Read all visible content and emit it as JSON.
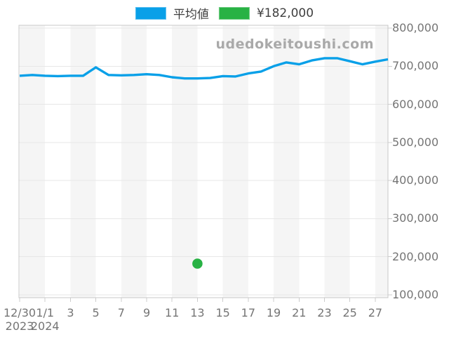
{
  "watermark": "udedokeitoushi.com",
  "legend": {
    "items": [
      {
        "label": "平均値",
        "color": "#09a0e8"
      },
      {
        "label": "¥182,000",
        "color": "#28b244"
      }
    ]
  },
  "colors": {
    "line": "#09a0e8",
    "dot": "#28b244",
    "band": "#f5f5f5",
    "grid": "#e7e7e7",
    "border": "#c8c8c8",
    "tick": "#cccccc"
  },
  "chart_data": {
    "type": "line",
    "title": "",
    "xlabel": "",
    "ylabel": "",
    "grid": true,
    "legend_position": "top",
    "background": "alternating-vertical-bands",
    "ylim": [
      100000,
      800000
    ],
    "x": [
      "12/30",
      "12/31",
      "1/1",
      "1/2",
      "1/3",
      "1/4",
      "1/5",
      "1/6",
      "1/7",
      "1/8",
      "1/9",
      "1/10",
      "1/11",
      "1/12",
      "1/13",
      "1/14",
      "1/15",
      "1/16",
      "1/17",
      "1/18",
      "1/19",
      "1/20",
      "1/21",
      "1/22",
      "1/23",
      "1/24",
      "1/25",
      "1/26",
      "1/27",
      "1/28"
    ],
    "x_ticks": [
      {
        "label": "12/30",
        "sub": "2023"
      },
      {
        "label": "1/1",
        "sub": "2024"
      },
      {
        "label": "3"
      },
      {
        "label": "5"
      },
      {
        "label": "7"
      },
      {
        "label": "9"
      },
      {
        "label": "11"
      },
      {
        "label": "13"
      },
      {
        "label": "15"
      },
      {
        "label": "17"
      },
      {
        "label": "19"
      },
      {
        "label": "21"
      },
      {
        "label": "23"
      },
      {
        "label": "25"
      },
      {
        "label": "27"
      }
    ],
    "y_ticks": [
      {
        "value": 100000,
        "label": "100,000"
      },
      {
        "value": 200000,
        "label": "200,000"
      },
      {
        "value": 300000,
        "label": "300,000"
      },
      {
        "value": 400000,
        "label": "400,000"
      },
      {
        "value": 500000,
        "label": "500,000"
      },
      {
        "value": 600000,
        "label": "600,000"
      },
      {
        "value": 700000,
        "label": "700,000"
      },
      {
        "value": 800000,
        "label": "800,000"
      }
    ],
    "series": [
      {
        "name": "平均値",
        "type": "line",
        "color": "#09a0e8",
        "values": [
          675000,
          677000,
          675000,
          674000,
          675000,
          675000,
          697000,
          677000,
          676000,
          677000,
          679000,
          677000,
          671000,
          668000,
          668000,
          669000,
          674000,
          673000,
          681000,
          686000,
          700000,
          710000,
          705000,
          715000,
          721000,
          721000,
          713000,
          705000,
          712000,
          718000
        ]
      },
      {
        "name": "¥182,000",
        "type": "scatter",
        "color": "#28b244",
        "points": [
          {
            "x": "1/13",
            "y": 182000
          }
        ]
      }
    ]
  }
}
